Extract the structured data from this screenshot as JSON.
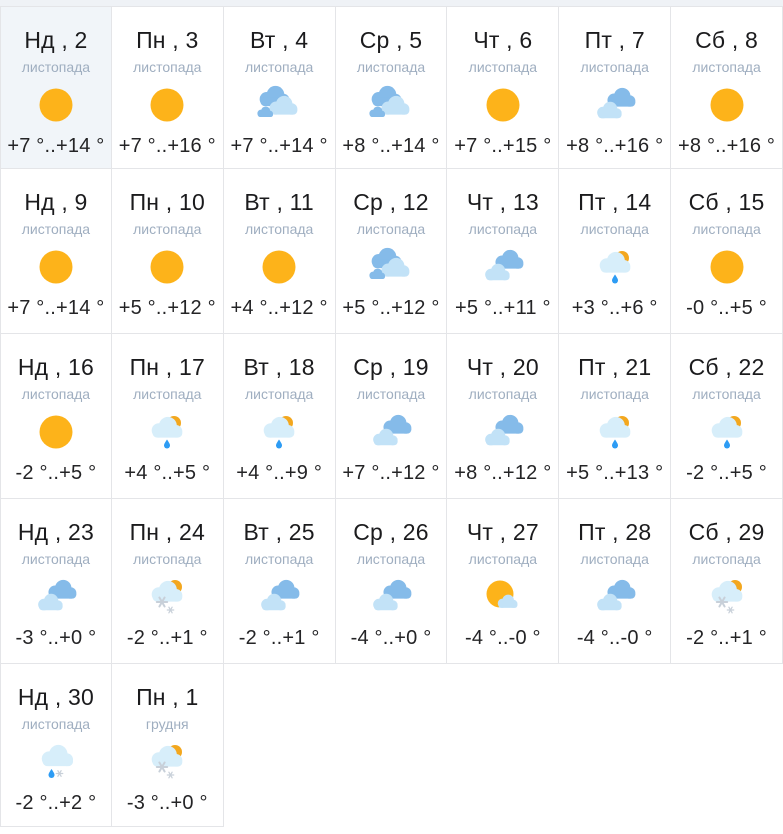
{
  "colors": {
    "sun": "#FDB31A",
    "sun_peek": "#F3A71E",
    "cloud_blue": "#85BBE9",
    "cloud_light": "#C2E2F7",
    "cloud_pale": "#D7EEFA",
    "drop": "#2D9CF4",
    "snow": "#C8D0D9",
    "today_bg": "#F1F5F9",
    "border": "#E4E5E8",
    "strip_bg": "#EFF2F6",
    "title_text": "#1B1B1D",
    "month_text": "#9FAEC0",
    "temp_text": "#242426"
  },
  "calendar": {
    "days": [
      {
        "title": "Нд , 2",
        "month": "листопада",
        "icon": "sun",
        "temp": "+7 °..+14 °",
        "today": true
      },
      {
        "title": "Пн , 3",
        "month": "листопада",
        "icon": "sun",
        "temp": "+7 °..+16 °",
        "today": false
      },
      {
        "title": "Вт , 4",
        "month": "листопада",
        "icon": "clouds-heavy",
        "temp": "+7 °..+14 °",
        "today": false
      },
      {
        "title": "Ср , 5",
        "month": "листопада",
        "icon": "clouds-heavy",
        "temp": "+8 °..+14 °",
        "today": false
      },
      {
        "title": "Чт , 6",
        "month": "листопада",
        "icon": "sun",
        "temp": "+7 °..+15 °",
        "today": false
      },
      {
        "title": "Пт , 7",
        "month": "листопада",
        "icon": "cloudy",
        "temp": "+8 °..+16 °",
        "today": false
      },
      {
        "title": "Сб , 8",
        "month": "листопада",
        "icon": "sun",
        "temp": "+8 °..+16 °",
        "today": false
      },
      {
        "title": "Нд , 9",
        "month": "листопада",
        "icon": "sun",
        "temp": "+7 °..+14 °",
        "today": false
      },
      {
        "title": "Пн , 10",
        "month": "листопада",
        "icon": "sun",
        "temp": "+5 °..+12 °",
        "today": false
      },
      {
        "title": "Вт , 11",
        "month": "листопада",
        "icon": "sun",
        "temp": "+4 °..+12 °",
        "today": false
      },
      {
        "title": "Ср , 12",
        "month": "листопада",
        "icon": "clouds-heavy",
        "temp": "+5 °..+12 °",
        "today": false
      },
      {
        "title": "Чт , 13",
        "month": "листопада",
        "icon": "cloudy",
        "temp": "+5 °..+11 °",
        "today": false
      },
      {
        "title": "Пт , 14",
        "month": "листопада",
        "icon": "rain-sun",
        "temp": "+3 °..+6 °",
        "today": false
      },
      {
        "title": "Сб , 15",
        "month": "листопада",
        "icon": "sun",
        "temp": "-0 °..+5 °",
        "today": false
      },
      {
        "title": "Нд , 16",
        "month": "листопада",
        "icon": "sun",
        "temp": "-2 °..+5 °",
        "today": false
      },
      {
        "title": "Пн , 17",
        "month": "листопада",
        "icon": "rain-sun",
        "temp": "+4 °..+5 °",
        "today": false
      },
      {
        "title": "Вт , 18",
        "month": "листопада",
        "icon": "rain-sun",
        "temp": "+4 °..+9 °",
        "today": false
      },
      {
        "title": "Ср , 19",
        "month": "листопада",
        "icon": "cloudy",
        "temp": "+7 °..+12 °",
        "today": false
      },
      {
        "title": "Чт , 20",
        "month": "листопада",
        "icon": "cloudy",
        "temp": "+8 °..+12 °",
        "today": false
      },
      {
        "title": "Пт , 21",
        "month": "листопада",
        "icon": "rain-sun",
        "temp": "+5 °..+13 °",
        "today": false
      },
      {
        "title": "Сб , 22",
        "month": "листопада",
        "icon": "rain-sun",
        "temp": "-2 °..+5 °",
        "today": false
      },
      {
        "title": "Нд , 23",
        "month": "листопада",
        "icon": "cloudy",
        "temp": "-3 °..+0 °",
        "today": false
      },
      {
        "title": "Пн , 24",
        "month": "листопада",
        "icon": "snow-sun",
        "temp": "-2 °..+1 °",
        "today": false
      },
      {
        "title": "Вт , 25",
        "month": "листопада",
        "icon": "cloudy",
        "temp": "-2 °..+1 °",
        "today": false
      },
      {
        "title": "Ср , 26",
        "month": "листопада",
        "icon": "cloudy",
        "temp": "-4 °..+0 °",
        "today": false
      },
      {
        "title": "Чт , 27",
        "month": "листопада",
        "icon": "sun-cloud",
        "temp": "-4 °..-0 °",
        "today": false
      },
      {
        "title": "Пт , 28",
        "month": "листопада",
        "icon": "cloudy",
        "temp": "-4 °..-0 °",
        "today": false
      },
      {
        "title": "Сб , 29",
        "month": "листопада",
        "icon": "snow-sun",
        "temp": "-2 °..+1 °",
        "today": false
      },
      {
        "title": "Нд , 30",
        "month": "листопада",
        "icon": "rain-snow",
        "temp": "-2 °..+2 °",
        "today": false
      },
      {
        "title": "Пн , 1",
        "month": "грудня",
        "icon": "snow-sun",
        "temp": "-3 °..+0 °",
        "today": false
      }
    ]
  }
}
